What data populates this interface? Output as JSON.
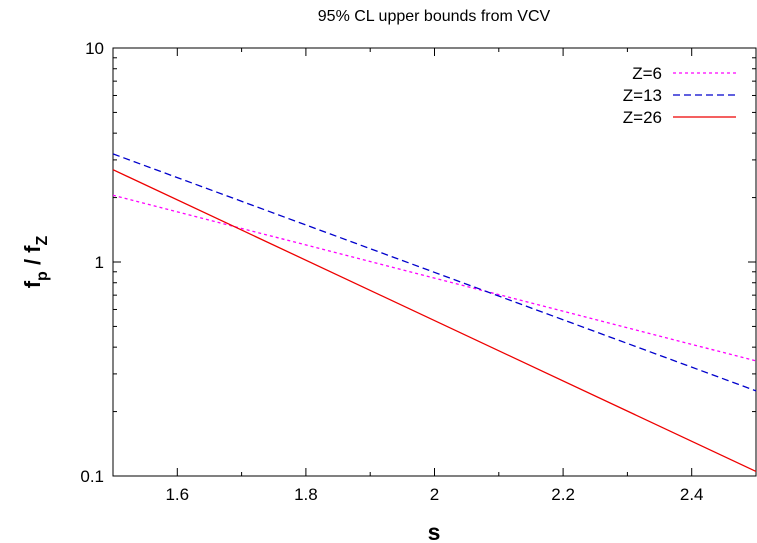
{
  "chart_data": {
    "type": "line",
    "title": "95% CL upper bounds from VCV",
    "xlabel": "s",
    "ylabel": {
      "f": "f",
      "p": "p",
      "sep": " / ",
      "z": "Z"
    },
    "xlim": [
      1.5,
      2.5
    ],
    "ylim": [
      0.1,
      10
    ],
    "yscale": "log",
    "grid": false,
    "legend_position": "top-right",
    "x_ticks": [
      {
        "value": 1.6,
        "label": "1.6"
      },
      {
        "value": 1.8,
        "label": "1.8"
      },
      {
        "value": 2.0,
        "label": "2"
      },
      {
        "value": 2.2,
        "label": "2.2"
      },
      {
        "value": 2.4,
        "label": "2.4"
      }
    ],
    "y_ticks": [
      {
        "value": 0.1,
        "label": "0.1"
      },
      {
        "value": 1,
        "label": "1"
      },
      {
        "value": 10,
        "label": "10"
      }
    ],
    "series": [
      {
        "name": "Z=6",
        "color": "#ff00ff",
        "dash": "dotted",
        "x": [
          1.5,
          2.5
        ],
        "y": [
          2.05,
          0.345
        ]
      },
      {
        "name": "Z=13",
        "color": "#0000cc",
        "dash": "dashed",
        "x": [
          1.5,
          2.5
        ],
        "y": [
          3.2,
          0.25
        ]
      },
      {
        "name": "Z=26",
        "color": "#ee0000",
        "dash": "solid",
        "x": [
          1.5,
          2.5
        ],
        "y": [
          2.7,
          0.105
        ]
      }
    ]
  }
}
